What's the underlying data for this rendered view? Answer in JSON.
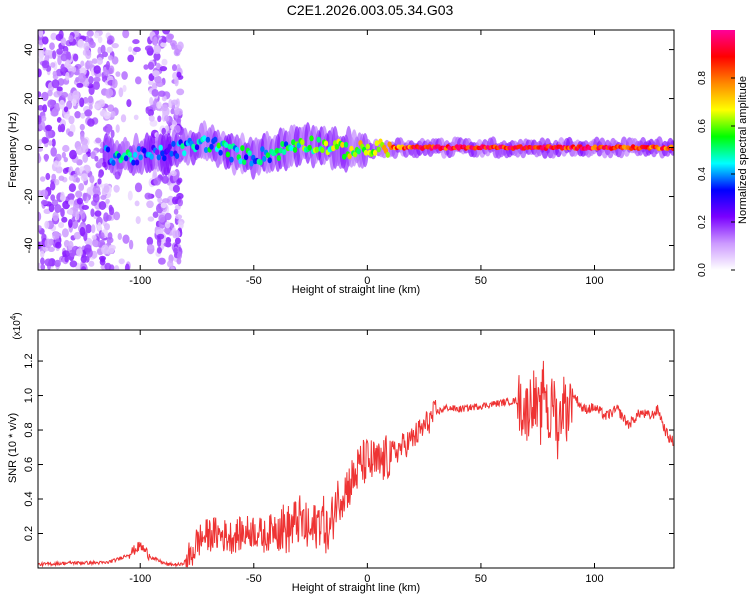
{
  "title": "C2E1.2026.003.05.34.G03",
  "chart_data": [
    {
      "type": "heatmap",
      "xlabel": "Height of straight line (km)",
      "ylabel": "Frequency (Hz)",
      "xlim": [
        -145,
        135
      ],
      "ylim": [
        -50,
        48
      ],
      "xticks": [
        -100,
        -50,
        0,
        50,
        100
      ],
      "yticks": [
        -40,
        -20,
        0,
        20,
        40
      ],
      "colorbar": {
        "label": "Normalized spectral amplitude",
        "range": [
          0,
          1
        ],
        "ticks": [
          0.0,
          0.2,
          0.4,
          0.6,
          0.8
        ],
        "colors": [
          "#ffffff",
          "#cc99ff",
          "#7a00ff",
          "#0000ff",
          "#00ffff",
          "#00ff00",
          "#ffff00",
          "#ff8800",
          "#ff0000",
          "#ff0099"
        ]
      },
      "ridge": [
        {
          "x": -115,
          "f": -3.0,
          "amp": 0.35
        },
        {
          "x": -105,
          "f": -4.0,
          "amp": 0.45
        },
        {
          "x": -95,
          "f": -3.0,
          "amp": 0.3
        },
        {
          "x": -80,
          "f": 0.0,
          "amp": 0.4
        },
        {
          "x": -70,
          "f": 2.0,
          "amp": 0.45
        },
        {
          "x": -60,
          "f": -2.0,
          "amp": 0.5
        },
        {
          "x": -50,
          "f": -4.0,
          "amp": 0.4
        },
        {
          "x": -40,
          "f": -2.0,
          "amp": 0.45
        },
        {
          "x": -30,
          "f": 2.0,
          "amp": 0.5
        },
        {
          "x": -20,
          "f": 1.0,
          "amp": 0.55
        },
        {
          "x": -10,
          "f": -1.0,
          "amp": 0.6
        },
        {
          "x": 0,
          "f": -1.0,
          "amp": 0.65
        },
        {
          "x": 10,
          "f": 0.0,
          "amp": 0.75
        },
        {
          "x": 20,
          "f": 0.0,
          "amp": 0.85
        },
        {
          "x": 40,
          "f": 0.0,
          "amp": 0.9
        },
        {
          "x": 60,
          "f": 0.0,
          "amp": 0.92
        },
        {
          "x": 80,
          "f": 0.0,
          "amp": 0.9
        },
        {
          "x": 100,
          "f": 0.0,
          "amp": 0.88
        },
        {
          "x": 120,
          "f": 0.0,
          "amp": 0.85
        },
        {
          "x": 133,
          "f": 0.0,
          "amp": 0.8
        }
      ]
    },
    {
      "type": "line",
      "xlabel": "Height of straight line (km)",
      "ylabel": "SNR (10 * v/v)",
      "yscale_label": "(x10",
      "yscale_exp": "4",
      "yscale_close": ")",
      "xlim": [
        -145,
        135
      ],
      "ylim": [
        0,
        1.38
      ],
      "xticks": [
        -100,
        -50,
        0,
        50,
        100
      ],
      "yticks": [
        0.2,
        0.4,
        0.6,
        0.8,
        1.0,
        1.2
      ],
      "color": "#ee3333",
      "series": [
        {
          "name": "SNR",
          "x": [
            -145,
            -130,
            -115,
            -110,
            -105,
            -100,
            -95,
            -88,
            -82,
            -78,
            -75,
            -72,
            -68,
            -60,
            -55,
            -50,
            -45,
            -40,
            -35,
            -30,
            -25,
            -20,
            -17,
            -14,
            -10,
            -6,
            -3,
            0,
            5,
            10,
            15,
            20,
            25,
            30,
            35,
            40,
            50,
            60,
            66,
            70,
            73,
            76,
            78,
            80,
            82,
            84,
            86,
            88,
            90,
            95,
            100,
            105,
            110,
            115,
            120,
            125,
            128,
            131,
            133,
            135
          ],
          "y": [
            0.02,
            0.03,
            0.03,
            0.05,
            0.08,
            0.13,
            0.06,
            0.02,
            0.02,
            0.06,
            0.15,
            0.18,
            0.2,
            0.18,
            0.2,
            0.22,
            0.18,
            0.25,
            0.22,
            0.28,
            0.2,
            0.3,
            0.18,
            0.38,
            0.45,
            0.52,
            0.6,
            0.62,
            0.6,
            0.65,
            0.7,
            0.75,
            0.82,
            0.9,
            0.93,
            0.92,
            0.94,
            0.96,
            0.97,
            0.9,
            1.0,
            0.85,
            1.1,
            0.82,
            1.0,
            0.78,
            0.98,
            0.9,
            1.02,
            0.92,
            0.93,
            0.88,
            0.92,
            0.83,
            0.9,
            0.88,
            0.92,
            0.8,
            0.75,
            0.73
          ]
        }
      ],
      "noise": [
        {
          "x": [
            -145,
            -105
          ],
          "amp": 0.01
        },
        {
          "x": [
            -105,
            -96
          ],
          "amp": 0.03
        },
        {
          "x": [
            -96,
            -80
          ],
          "amp": 0.01
        },
        {
          "x": [
            -80,
            -40
          ],
          "amp": 0.1
        },
        {
          "x": [
            -40,
            -15
          ],
          "amp": 0.15
        },
        {
          "x": [
            -15,
            10
          ],
          "amp": 0.14
        },
        {
          "x": [
            10,
            30
          ],
          "amp": 0.08
        },
        {
          "x": [
            30,
            66
          ],
          "amp": 0.02
        },
        {
          "x": [
            66,
            90
          ],
          "amp": 0.18
        },
        {
          "x": [
            90,
            135
          ],
          "amp": 0.03
        }
      ]
    }
  ]
}
